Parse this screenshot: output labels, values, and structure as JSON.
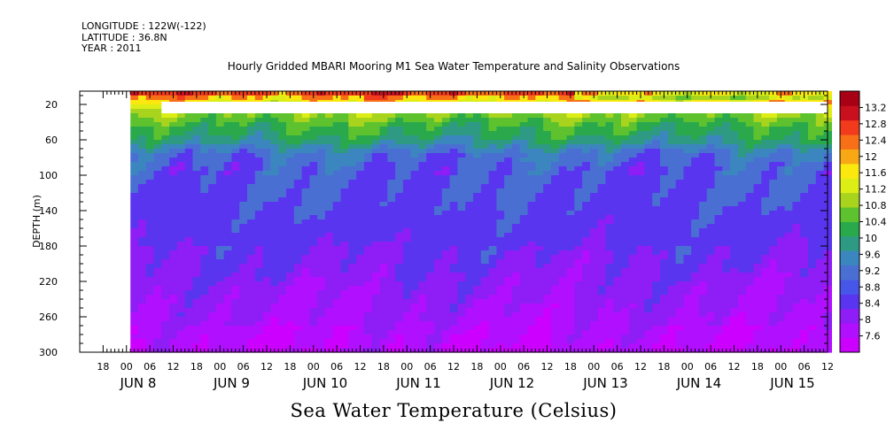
{
  "header": {
    "longitude": "LONGITUDE : 122W(-122)",
    "latitude": "LATITUDE : 36.8N",
    "year": "YEAR : 2011"
  },
  "plot_title": "Hourly Gridded MBARI Mooring M1 Sea Water Temperature and Salinity Observations",
  "bottom_title": "Sea Water Temperature (Celsius)",
  "colors": {
    "missing": "#ffffff",
    "scale": [
      "#cc00ff",
      "#b010ff",
      "#8f1df5",
      "#5a35f0",
      "#4656e8",
      "#4a6fd2",
      "#3c86c0",
      "#2f9a84",
      "#2aa94c",
      "#5ec22e",
      "#a8d41e",
      "#dcee16",
      "#fbe80f",
      "#f8a814",
      "#f77018",
      "#f23a1c",
      "#c8101e",
      "#a80014"
    ]
  },
  "chart_data": {
    "type": "heatmap",
    "title": "Hourly Gridded MBARI Mooring M1 Sea Water Temperature and Salinity Observations",
    "xlabel": "",
    "ylabel": "DEPTH (m)",
    "colorbar_label": "Sea Water Temperature (Celsius)",
    "y_reversed": true,
    "ylim": [
      300,
      5
    ],
    "xlim_hours": [
      -6,
      186
    ],
    "yticks": [
      20,
      60,
      100,
      140,
      180,
      220,
      260,
      300
    ],
    "x_hour_ticks": [
      {
        "h": 0,
        "label": "18"
      },
      {
        "h": 6,
        "label": "00"
      },
      {
        "h": 12,
        "label": "06"
      },
      {
        "h": 18,
        "label": "12"
      },
      {
        "h": 24,
        "label": "18"
      },
      {
        "h": 30,
        "label": "00"
      },
      {
        "h": 36,
        "label": "06"
      },
      {
        "h": 42,
        "label": "12"
      },
      {
        "h": 48,
        "label": "18"
      },
      {
        "h": 54,
        "label": "00"
      },
      {
        "h": 60,
        "label": "06"
      },
      {
        "h": 66,
        "label": "12"
      },
      {
        "h": 72,
        "label": "18"
      },
      {
        "h": 78,
        "label": "00"
      },
      {
        "h": 84,
        "label": "06"
      },
      {
        "h": 90,
        "label": "12"
      },
      {
        "h": 96,
        "label": "18"
      },
      {
        "h": 102,
        "label": "00"
      },
      {
        "h": 108,
        "label": "06"
      },
      {
        "h": 114,
        "label": "12"
      },
      {
        "h": 120,
        "label": "18"
      },
      {
        "h": 126,
        "label": "00"
      },
      {
        "h": 132,
        "label": "06"
      },
      {
        "h": 138,
        "label": "12"
      },
      {
        "h": 144,
        "label": "18"
      },
      {
        "h": 150,
        "label": "00"
      },
      {
        "h": 156,
        "label": "06"
      },
      {
        "h": 162,
        "label": "12"
      },
      {
        "h": 168,
        "label": "18"
      },
      {
        "h": 174,
        "label": "00"
      },
      {
        "h": 180,
        "label": "06"
      },
      {
        "h": 186,
        "label": "12"
      },
      {
        "h": 192,
        "label": "18"
      }
    ],
    "x_day_labels": [
      {
        "h": 9,
        "label": "JUN  8"
      },
      {
        "h": 33,
        "label": "JUN  9"
      },
      {
        "h": 57,
        "label": "JUN 10"
      },
      {
        "h": 81,
        "label": "JUN 11"
      },
      {
        "h": 105,
        "label": "JUN 12"
      },
      {
        "h": 129,
        "label": "JUN 13"
      },
      {
        "h": 153,
        "label": "JUN 14"
      },
      {
        "h": 177,
        "label": "JUN 15"
      }
    ],
    "colorbar_levels": [
      7.6,
      8,
      8.4,
      8.8,
      9.2,
      9.6,
      10,
      10.4,
      10.8,
      11.2,
      11.6,
      12,
      12.4,
      12.8,
      13.2
    ],
    "data_start_hour": 7,
    "missing_regions": [
      {
        "hour_from": -6,
        "hour_to": 7,
        "depth_from": 5,
        "depth_to": 300
      },
      {
        "hour_from": 15,
        "hour_to": 192,
        "depth_from": 17,
        "depth_to": 30
      }
    ],
    "depth_profile": [
      {
        "depth": 5,
        "temp": 12.9
      },
      {
        "depth": 10,
        "temp": 12.2
      },
      {
        "depth": 30,
        "temp": 10.9
      },
      {
        "depth": 45,
        "temp": 10.3
      },
      {
        "depth": 60,
        "temp": 9.9
      },
      {
        "depth": 75,
        "temp": 9.1
      },
      {
        "depth": 90,
        "temp": 8.85
      },
      {
        "depth": 140,
        "temp": 8.7
      },
      {
        "depth": 180,
        "temp": 8.5
      },
      {
        "depth": 220,
        "temp": 8.2
      },
      {
        "depth": 260,
        "temp": 7.95
      },
      {
        "depth": 300,
        "temp": 7.7
      }
    ]
  }
}
